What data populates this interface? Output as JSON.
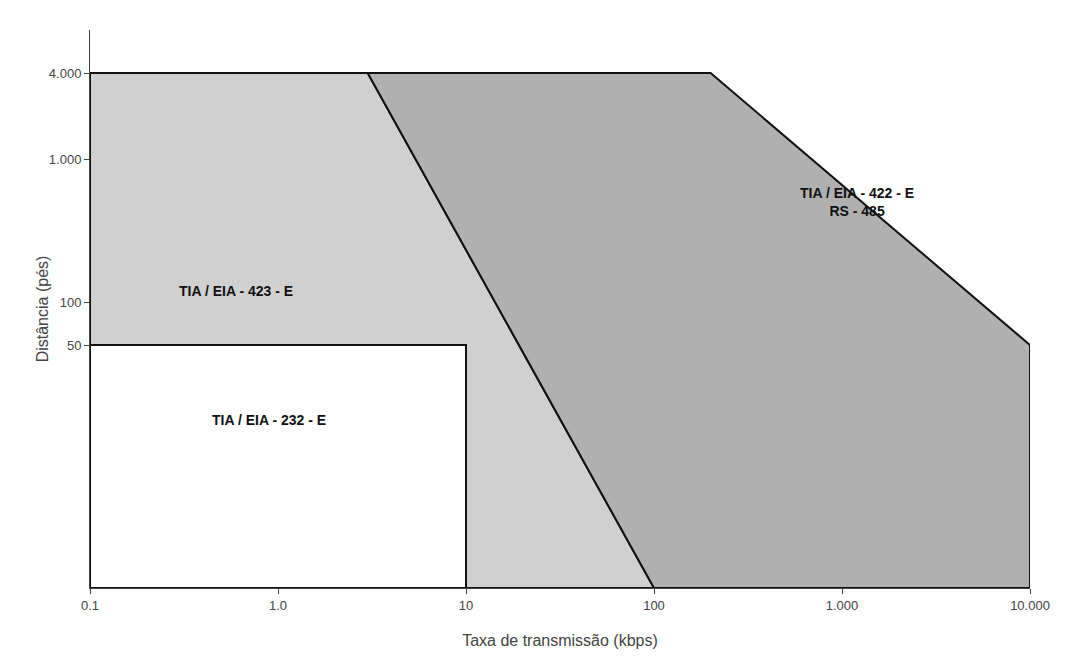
{
  "chart_data": {
    "type": "region",
    "log": true,
    "grid": false,
    "xlabel": "Taxa de transmissão (kbps)",
    "ylabel": "Distância (pés)",
    "xlim": [
      0.1,
      10000
    ],
    "ylim": [
      1,
      8000
    ],
    "xticks": [
      0.1,
      {
        "value": 1.0,
        "label": "1.0"
      },
      10,
      100,
      {
        "value": 1000,
        "label": "1.000"
      },
      {
        "value": 10000,
        "label": "10.000"
      }
    ],
    "yticks": [
      50,
      100,
      {
        "value": 1000,
        "label": "1.000"
      },
      {
        "value": 4000,
        "label": "4.000"
      }
    ],
    "edge_color": "#111111",
    "series": [
      {
        "color": "#d0d0d0",
        "x": [
          0.1,
          0.1,
          3.0,
          100.0
        ],
        "y": [
          1,
          4000,
          4000,
          1
        ]
      },
      {
        "color": "#b0b0b0",
        "x": [
          3.0,
          200.0,
          10000.0,
          10000.0,
          100.0
        ],
        "y": [
          4000,
          4000,
          50,
          1,
          1
        ]
      },
      {
        "color": "#ffffff",
        "x": [
          0.1,
          0.1,
          10.0,
          10.0
        ],
        "y": [
          1,
          50,
          50,
          1
        ]
      }
    ],
    "annotations": [
      {
        "text": "TIA / EIA - 232 - E",
        "x": 0.9,
        "y": 15
      },
      {
        "text": "TIA / EIA - 423 - E",
        "x": 0.6,
        "y": 120
      },
      {
        "text": "TIA / EIA - 422 - E\nRS - 485",
        "x": 1200,
        "y": 500
      }
    ]
  }
}
